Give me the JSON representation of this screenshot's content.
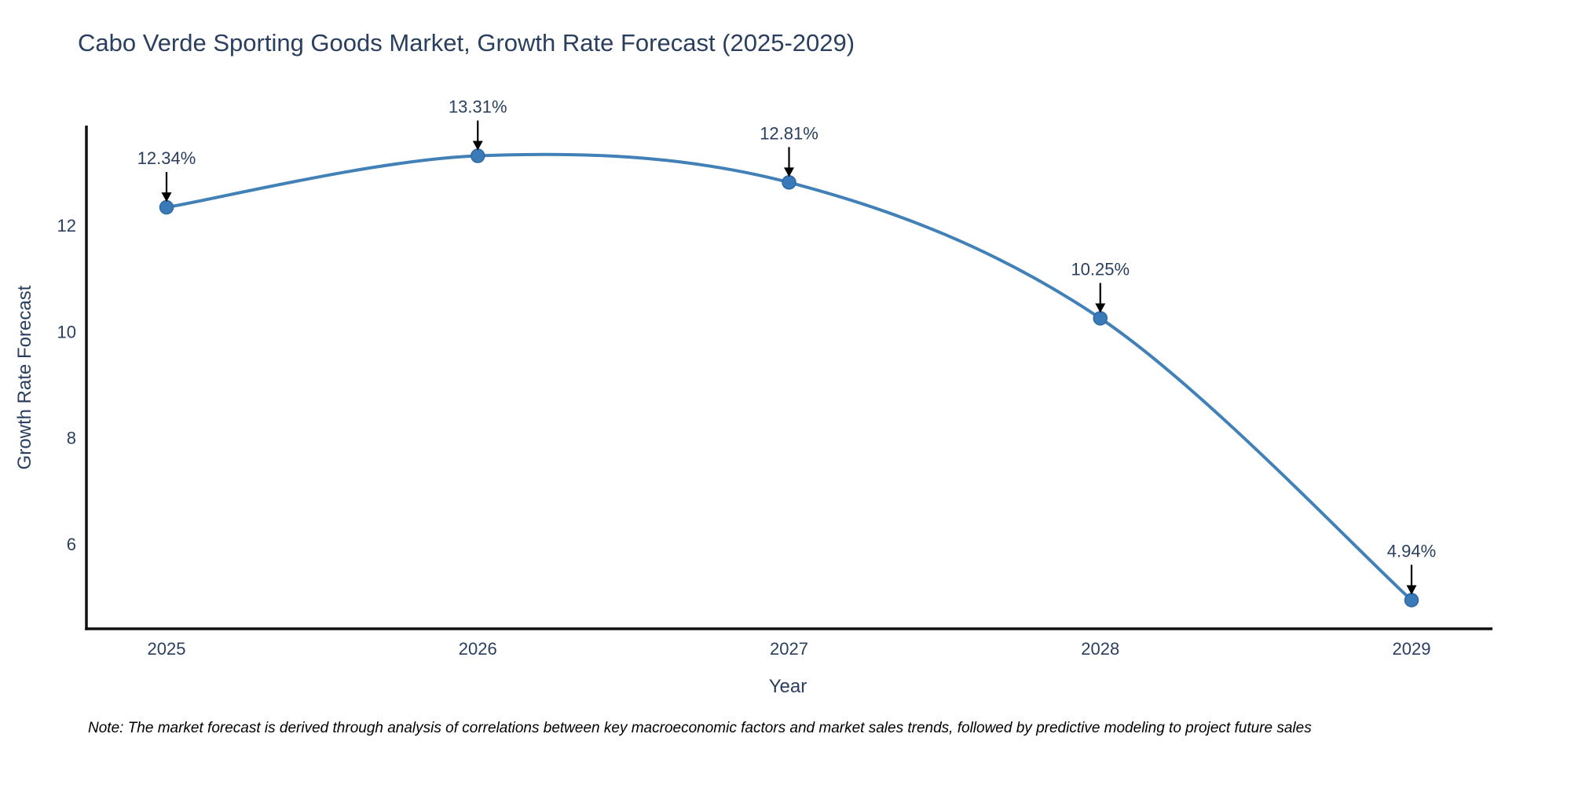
{
  "figure": {
    "note": "Note: The market forecast is derived through analysis of correlations between key macroeconomic factors and market sales trends, followed by predictive modeling to project future sales"
  },
  "chart_data": {
    "type": "line",
    "title": "Cabo Verde Sporting Goods Market, Growth Rate Forecast (2025-2029)",
    "x": [
      "2025",
      "2026",
      "2027",
      "2028",
      "2029"
    ],
    "values": [
      12.34,
      13.31,
      12.81,
      10.25,
      4.94
    ],
    "point_labels": [
      "12.34%",
      "13.31%",
      "12.81%",
      "10.25%",
      "4.94%"
    ],
    "xlabel": "Year",
    "ylabel": "Growth Rate Forecast",
    "ylim": [
      4.4,
      13.88
    ],
    "yticks": [
      6,
      8,
      10,
      12
    ],
    "line_shape": "spline",
    "markers": true,
    "grid": false,
    "legend_position": "none",
    "colors": {
      "line": "#4181b8",
      "marker": "#3a7ab8",
      "marker_edge": "#2d6aa3",
      "axis": "#111111",
      "text": "#2a3f5f",
      "annotation_arrow": "#000000",
      "background": "#ffffff"
    }
  }
}
